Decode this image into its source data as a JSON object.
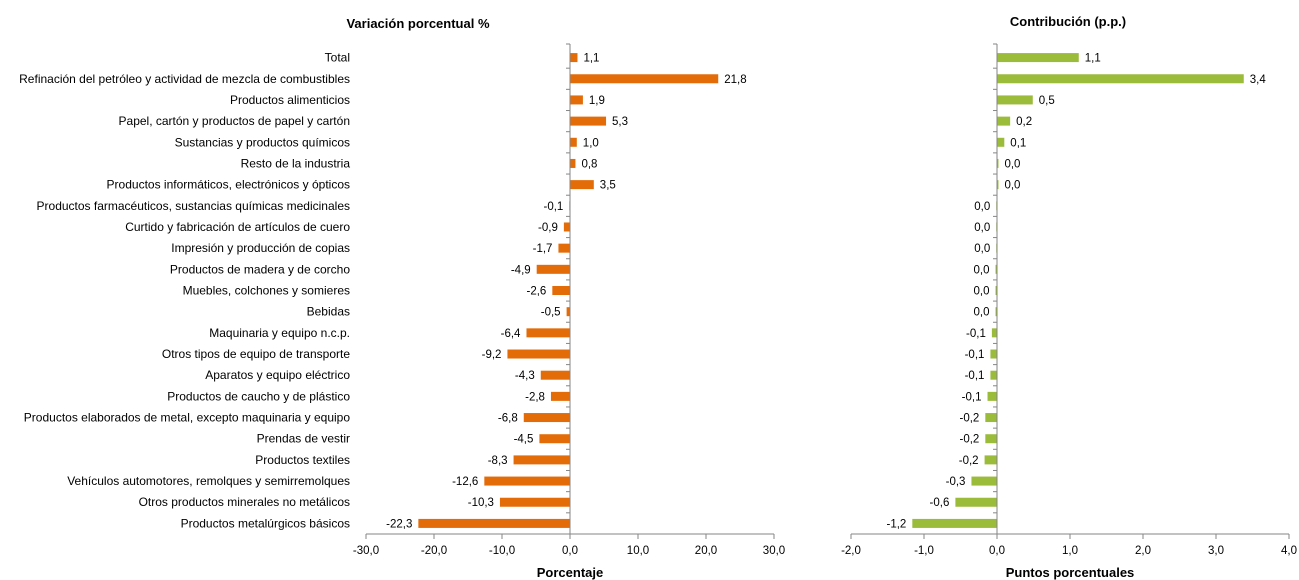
{
  "chart_data": [
    {
      "type": "bar",
      "orientation": "horizontal",
      "title": "Variación porcentual %",
      "xlabel": "Porcentaje",
      "ylabel": "",
      "xlim": [
        -30,
        30
      ],
      "xticks": [
        "-30,0",
        "-20,0",
        "-10,0",
        "0,0",
        "10,0",
        "20,0",
        "30,0"
      ],
      "grid": false,
      "color": "#E36C09",
      "categories": [
        "Total",
        "Refinación del petróleo y actividad de mezcla de combustibles",
        "Productos alimenticios",
        "Papel, cartón y productos de papel y cartón",
        "Sustancias y productos químicos",
        "Resto de la industria",
        "Productos informáticos, electrónicos y ópticos",
        "Productos farmacéuticos, sustancias químicas medicinales",
        "Curtido y fabricación de artículos de cuero",
        "Impresión y producción de copias",
        "Productos de madera y de corcho",
        "Muebles, colchones y somieres",
        "Bebidas",
        "Maquinaria y equipo n.c.p.",
        "Otros tipos de equipo de transporte",
        "Aparatos y equipo eléctrico",
        "Productos de caucho y de plástico",
        "Productos elaborados de metal, excepto maquinaria y equipo",
        "Prendas de vestir",
        "Productos textiles",
        "Vehículos automotores, remolques y semirremolques",
        "Otros productos minerales no metálicos",
        "Productos metalúrgicos básicos"
      ],
      "values": [
        1.1,
        21.8,
        1.9,
        5.3,
        1.0,
        0.8,
        3.5,
        -0.1,
        -0.9,
        -1.7,
        -4.9,
        -2.6,
        -0.5,
        -6.4,
        -9.2,
        -4.3,
        -2.8,
        -6.8,
        -4.5,
        -8.3,
        -12.6,
        -10.3,
        -22.3
      ],
      "data_labels": [
        "1,1",
        "21,8",
        "1,9",
        "5,3",
        "1,0",
        "0,8",
        "3,5",
        "-0,1",
        "-0,9",
        "-1,7",
        "-4,9",
        "-2,6",
        "-0,5",
        "-6,4",
        "-9,2",
        "-4,3",
        "-2,8",
        "-6,8",
        "-4,5",
        "-8,3",
        "-12,6",
        "-10,3",
        "-22,3"
      ]
    },
    {
      "type": "bar",
      "orientation": "horizontal",
      "title": "Contribución (p.p.)",
      "xlabel": "Puntos porcentuales",
      "ylabel": "",
      "xlim": [
        -2,
        4
      ],
      "xticks": [
        "-2,0",
        "-1,0",
        "0,0",
        "1,0",
        "2,0",
        "3,0",
        "4,0"
      ],
      "grid": false,
      "color": "#9BBB3B",
      "values": [
        1.12,
        3.38,
        0.49,
        0.18,
        0.1,
        0.02,
        0.02,
        -0.01,
        -0.01,
        -0.01,
        -0.02,
        -0.02,
        -0.02,
        -0.07,
        -0.09,
        -0.09,
        -0.13,
        -0.16,
        -0.16,
        -0.17,
        -0.35,
        -0.57,
        -1.16
      ],
      "data_labels": [
        "1,1",
        "3,4",
        "0,5",
        "0,2",
        "0,1",
        "0,0",
        "0,0",
        "0,0",
        "0,0",
        "0,0",
        "0,0",
        "0,0",
        "0,0",
        "-0,1",
        "-0,1",
        "-0,1",
        "-0,1",
        "-0,2",
        "-0,2",
        "-0,2",
        "-0,3",
        "-0,6",
        "-1,2"
      ]
    }
  ]
}
